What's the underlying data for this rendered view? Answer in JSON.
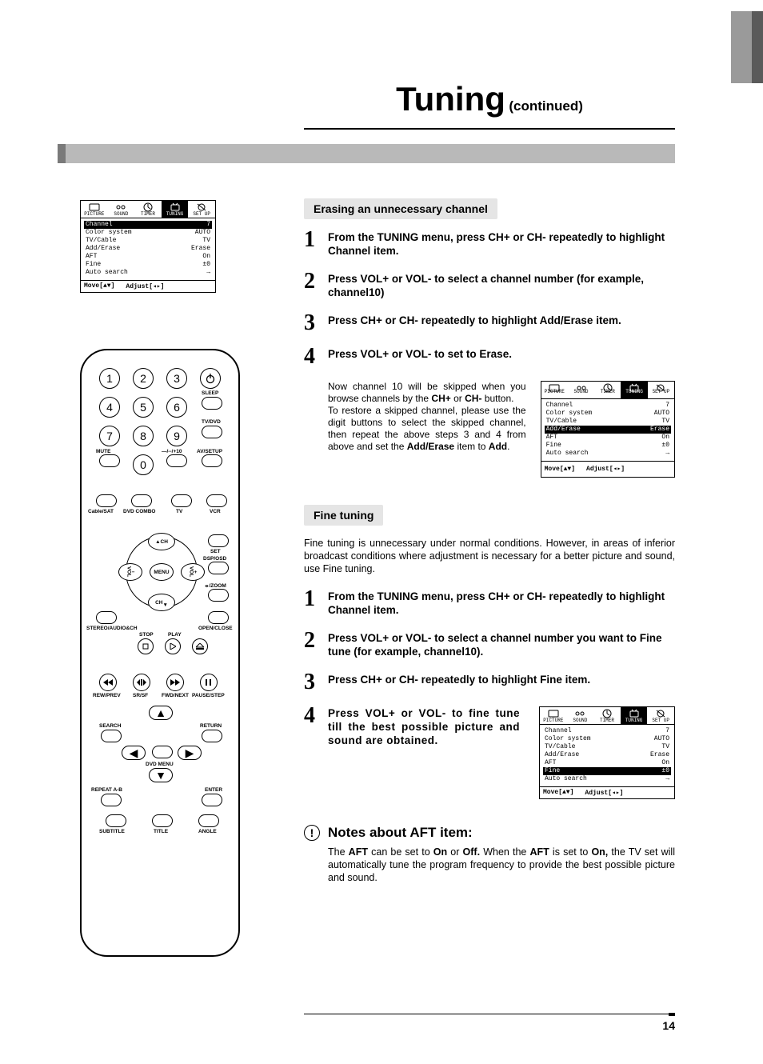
{
  "page_number": "14",
  "title": {
    "main": "Tuning",
    "suffix": "(continued)"
  },
  "section_erasing": {
    "heading": "Erasing an unnecessary channel",
    "steps": [
      "From the TUNING menu, press CH+ or CH- repeatedly to highlight  Channel item.",
      "Press VOL+ or VOL- to select a channel number (for example, channel10)",
      "Press CH+ or CH- repeatedly to highlight  Add/Erase item.",
      "Press VOL+ or VOL- to set to Erase."
    ],
    "sub_text_1": "Now channel 10 will be skipped when you browse channels by the ",
    "sub_bold_1a": "CH+",
    "sub_mid_1": " or ",
    "sub_bold_1b": "CH-",
    "sub_end_1": " button.",
    "sub_text_2": "To restore a skipped channel, please use the digit buttons to select the skipped channel, then repeat the above steps 3 and 4 from above and set the ",
    "sub_bold_2": "Add/Erase",
    "sub_end_2": " item to ",
    "sub_bold_3": "Add",
    "sub_end_3": "."
  },
  "section_fine": {
    "heading": "Fine tuning",
    "intro": "Fine tuning is unnecessary under normal conditions. However, in areas of inferior broadcast conditions where adjustment is necessary for a better picture and sound, use Fine tuning.",
    "steps": [
      "From the TUNING menu, press CH+ or CH-  repeatedly to highlight  Channel item.",
      "Press VOL+ or VOL- to select a channel number you want to Fine tune (for example, channel10).",
      "Press CH+ or CH- repeatedly to highlight  Fine item.",
      "Press VOL+ or VOL- to  fine tune till the best possible picture and sound are obtained."
    ]
  },
  "notes": {
    "heading": "Notes about AFT item:",
    "body_1": "The ",
    "b1": "AFT",
    "body_2": " can be set to ",
    "b2": "On",
    "body_3": " or ",
    "b3": "Off.",
    "body_4": " When the ",
    "b4": "AFT",
    "body_5": " is set to ",
    "b5": "On,",
    "body_6": " the TV set will automatically tune the program frequency to provide the best possible picture and sound."
  },
  "osd": {
    "tabs": [
      "PICTURE",
      "SOUND",
      "TIMER",
      "TUNING",
      "SET UP"
    ],
    "active_tab": 3,
    "rows": [
      {
        "l": "Channel",
        "r": "7"
      },
      {
        "l": "Color system",
        "r": "AUTO"
      },
      {
        "l": "TV/Cable",
        "r": "TV"
      },
      {
        "l": "Add/Erase",
        "r": "Erase"
      },
      {
        "l": "AFT",
        "r": "On"
      },
      {
        "l": "Fine",
        "r": "±0"
      },
      {
        "l": "Auto search",
        "r": "→"
      }
    ],
    "footer_move": "Move[▲▼]",
    "footer_adjust": "Adjust[◂▸]"
  },
  "osd_variants": {
    "main_hl": 0,
    "erase_hl": 3,
    "fine_hl": 5
  },
  "remote": {
    "numbers": [
      "1",
      "2",
      "3",
      "4",
      "5",
      "6",
      "7",
      "8",
      "9",
      "0"
    ],
    "labels": {
      "sleep": "SLEEP",
      "tvdvd": "TV/DVD",
      "mute": "MUTE",
      "plus10": "—/--/+10",
      "avsetup": "AV/SETUP",
      "cablesat": "Cable/SAT",
      "dvdcombo": "DVD COMBO",
      "tv": "TV",
      "vcr": "VCR",
      "set": "SET",
      "dsposd": "DSP/OSD",
      "zoom": "⦵/ZOOM",
      "stereo": "STEREO/AUDIO&CH",
      "openclose": "OPEN/CLOSE",
      "stop": "STOP",
      "play": "PLAY",
      "rewprev": "REW/PREV",
      "srsf": "SR/SF",
      "fwdnext": "FWD/NEXT",
      "pausestep": "PAUSE/STEP",
      "search": "SEARCH",
      "return": "RETURN",
      "dvdmenu": "DVD MENU",
      "repeatab": "REPEAT A-B",
      "enter": "ENTER",
      "subtitle": "SUBTITLE",
      "title": "TITLE",
      "angle": "ANGLE",
      "chup": "CH",
      "chdn": "CH",
      "menu": "MENU",
      "volL": "VOL",
      "volR": "VOL"
    }
  }
}
